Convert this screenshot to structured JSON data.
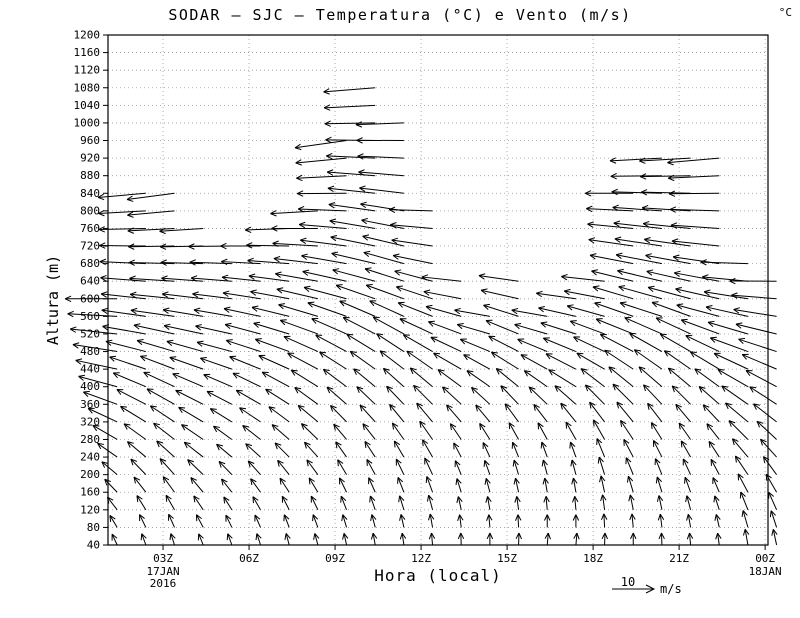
{
  "chart_data": {
    "type": "vector",
    "title": "SODAR – SJC – Temperatura (°C) e Vento (m/s)",
    "unit_label": "°C",
    "xlabel": "Hora (local)",
    "ylabel": "Altura (m)",
    "x_unit": "hora (Z)",
    "y_unit": "m",
    "grid": true,
    "x_range": [
      1.08,
      24.1
    ],
    "y_range": [
      40,
      1200
    ],
    "y_ticks": [
      40,
      80,
      120,
      160,
      200,
      240,
      280,
      320,
      360,
      400,
      440,
      480,
      520,
      560,
      600,
      640,
      680,
      720,
      760,
      800,
      840,
      880,
      920,
      960,
      1000,
      1040,
      1080,
      1120,
      1160,
      1200
    ],
    "x_ticks": [
      {
        "t": 3,
        "label": "03Z"
      },
      {
        "t": 6,
        "label": "06Z"
      },
      {
        "t": 9,
        "label": "09Z"
      },
      {
        "t": 12,
        "label": "12Z"
      },
      {
        "t": 15,
        "label": "15Z"
      },
      {
        "t": 18,
        "label": "18Z"
      },
      {
        "t": 21,
        "label": "21Z"
      },
      {
        "t": 24,
        "label": "00Z"
      }
    ],
    "x_sub_labels": [
      {
        "t": 3,
        "lines": [
          "17JAN",
          "2016"
        ]
      },
      {
        "t": 24,
        "lines": [
          "18JAN"
        ]
      }
    ],
    "reference_vector": {
      "speed_ms": 10,
      "value_label": "10",
      "unit": "m/s"
    },
    "vector_convention": "profile entries are [height_m, pointing_angle_deg_ccw_from_east, speed_ms]; arrows drawn at 40 m steps from 40 m to column top, linearly interpolated",
    "columns": [
      {
        "t": 1.4,
        "top": 600,
        "profile": [
          [
            40,
            115,
            3
          ],
          [
            200,
            140,
            5
          ],
          [
            400,
            165,
            10
          ],
          [
            600,
            180,
            13
          ]
        ]
      },
      {
        "t": 2.4,
        "top": 840,
        "profile": [
          [
            40,
            110,
            3
          ],
          [
            240,
            140,
            6
          ],
          [
            520,
            170,
            11
          ],
          [
            840,
            185,
            12
          ]
        ]
      },
      {
        "t": 3.4,
        "top": 850,
        "profile": [
          [
            40,
            108,
            3
          ],
          [
            240,
            138,
            6
          ],
          [
            560,
            172,
            11
          ],
          [
            850,
            188,
            12
          ]
        ]
      },
      {
        "t": 4.4,
        "top": 780,
        "profile": [
          [
            40,
            112,
            3
          ],
          [
            240,
            142,
            6
          ],
          [
            520,
            168,
            10
          ],
          [
            780,
            185,
            11
          ]
        ]
      },
      {
        "t": 5.4,
        "top": 740,
        "profile": [
          [
            40,
            110,
            3
          ],
          [
            240,
            140,
            5
          ],
          [
            480,
            165,
            9
          ],
          [
            740,
            182,
            11
          ]
        ]
      },
      {
        "t": 6.4,
        "top": 720,
        "profile": [
          [
            40,
            108,
            3
          ],
          [
            240,
            138,
            5
          ],
          [
            480,
            162,
            9
          ],
          [
            720,
            180,
            10
          ]
        ]
      },
      {
        "t": 7.4,
        "top": 760,
        "profile": [
          [
            40,
            105,
            3
          ],
          [
            240,
            135,
            5
          ],
          [
            480,
            160,
            9
          ],
          [
            760,
            182,
            11
          ]
        ]
      },
      {
        "t": 8.4,
        "top": 820,
        "profile": [
          [
            40,
            105,
            3
          ],
          [
            240,
            132,
            5
          ],
          [
            520,
            160,
            10
          ],
          [
            820,
            185,
            12
          ]
        ]
      },
      {
        "t": 9.4,
        "top": 960,
        "profile": [
          [
            40,
            102,
            3
          ],
          [
            280,
            130,
            5
          ],
          [
            600,
            165,
            11
          ],
          [
            960,
            188,
            13
          ]
        ]
      },
      {
        "t": 10.4,
        "top": 1090,
        "profile": [
          [
            40,
            100,
            3
          ],
          [
            280,
            128,
            5
          ],
          [
            640,
            165,
            11
          ],
          [
            1090,
            185,
            13
          ]
        ]
      },
      {
        "t": 11.4,
        "top": 1000,
        "profile": [
          [
            40,
            98,
            3
          ],
          [
            280,
            125,
            5
          ],
          [
            600,
            160,
            10
          ],
          [
            1000,
            182,
            12
          ]
        ]
      },
      {
        "t": 12.4,
        "top": 820,
        "profile": [
          [
            40,
            95,
            3
          ],
          [
            240,
            120,
            5
          ],
          [
            520,
            155,
            9
          ],
          [
            820,
            180,
            11
          ]
        ]
      },
      {
        "t": 13.4,
        "top": 650,
        "profile": [
          [
            40,
            92,
            3
          ],
          [
            240,
            118,
            4
          ],
          [
            440,
            150,
            8
          ],
          [
            650,
            175,
            10
          ]
        ]
      },
      {
        "t": 14.4,
        "top": 560,
        "profile": [
          [
            40,
            90,
            3
          ],
          [
            240,
            115,
            4
          ],
          [
            400,
            145,
            7
          ],
          [
            560,
            170,
            9
          ]
        ]
      },
      {
        "t": 15.4,
        "top": 640,
        "profile": [
          [
            40,
            88,
            3
          ],
          [
            240,
            112,
            4
          ],
          [
            440,
            148,
            8
          ],
          [
            640,
            172,
            10
          ]
        ]
      },
      {
        "t": 16.4,
        "top": 560,
        "profile": [
          [
            40,
            85,
            3
          ],
          [
            240,
            110,
            4
          ],
          [
            400,
            145,
            7
          ],
          [
            560,
            170,
            9
          ]
        ]
      },
      {
        "t": 17.4,
        "top": 600,
        "profile": [
          [
            40,
            85,
            3
          ],
          [
            240,
            110,
            4
          ],
          [
            400,
            148,
            8
          ],
          [
            600,
            172,
            10
          ]
        ]
      },
      {
        "t": 18.4,
        "top": 650,
        "profile": [
          [
            40,
            88,
            3
          ],
          [
            240,
            112,
            5
          ],
          [
            440,
            150,
            8
          ],
          [
            650,
            175,
            11
          ]
        ]
      },
      {
        "t": 19.4,
        "top": 840,
        "profile": [
          [
            40,
            90,
            3
          ],
          [
            240,
            118,
            5
          ],
          [
            520,
            158,
            10
          ],
          [
            840,
            180,
            12
          ]
        ]
      },
      {
        "t": 20.4,
        "top": 920,
        "profile": [
          [
            40,
            92,
            3
          ],
          [
            280,
            122,
            5
          ],
          [
            560,
            162,
            11
          ],
          [
            920,
            183,
            13
          ]
        ]
      },
      {
        "t": 21.4,
        "top": 950,
        "profile": [
          [
            40,
            95,
            3
          ],
          [
            280,
            125,
            5
          ],
          [
            600,
            165,
            11
          ],
          [
            950,
            185,
            13
          ]
        ]
      },
      {
        "t": 22.4,
        "top": 920,
        "profile": [
          [
            40,
            98,
            3
          ],
          [
            280,
            128,
            5
          ],
          [
            560,
            165,
            11
          ],
          [
            920,
            185,
            13
          ]
        ]
      },
      {
        "t": 23.4,
        "top": 700,
        "profile": [
          [
            40,
            100,
            4
          ],
          [
            240,
            130,
            6
          ],
          [
            480,
            160,
            10
          ],
          [
            700,
            180,
            12
          ]
        ]
      },
      {
        "t": 24.4,
        "top": 660,
        "profile": [
          [
            40,
            102,
            4
          ],
          [
            240,
            132,
            6
          ],
          [
            480,
            162,
            10
          ],
          [
            660,
            182,
            12
          ]
        ]
      }
    ]
  }
}
